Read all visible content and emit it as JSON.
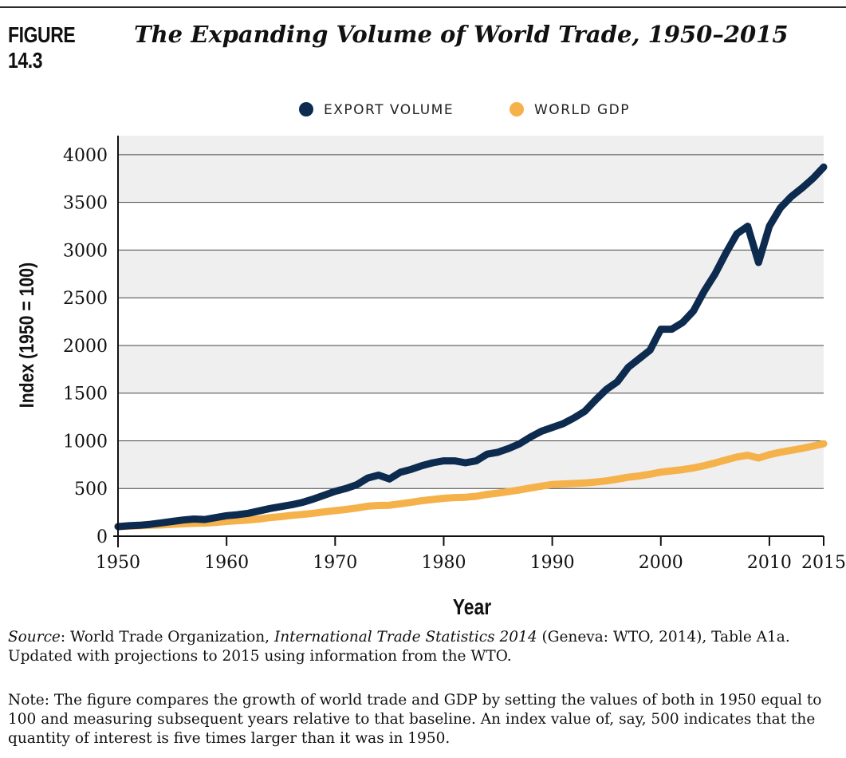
{
  "figure": {
    "label": "FIGURE 14.3",
    "title": "The Expanding Volume of World Trade, 1950–2015"
  },
  "source": {
    "label": "Source",
    "text_1": ": World Trade Organization, ",
    "publication": "International Trade Statistics 2014",
    "text_2": " (Geneva: WTO, 2014), Table A1a.",
    "text_3": "Updated with projections to 2015 using information from the WTO."
  },
  "note": "Note: The figure compares the growth of world trade and GDP by setting the values of both in 1950 equal to 100 and measuring subsequent years relative to that baseline. An index value of, say, 500 indicates that the quantity of interest is five times larger than it was in 1950.",
  "chart_data": {
    "type": "line",
    "xlabel": "Year",
    "ylabel": "Index (1950 = 100)",
    "xlim": [
      1950,
      2015
    ],
    "ylim": [
      0,
      4200
    ],
    "xticks": [
      1950,
      1960,
      1970,
      1980,
      1990,
      2000,
      2010,
      2015
    ],
    "yticks": [
      0,
      500,
      1000,
      1500,
      2000,
      2500,
      3000,
      3500,
      4000
    ],
    "grid": "alternating horizontal bands",
    "legend_position": "top-center",
    "series": [
      {
        "name": "EXPORT VOLUME",
        "color": "#0d2a4f",
        "x": [
          1950,
          1951,
          1952,
          1953,
          1954,
          1955,
          1956,
          1957,
          1958,
          1959,
          1960,
          1961,
          1962,
          1963,
          1964,
          1965,
          1966,
          1967,
          1968,
          1969,
          1970,
          1971,
          1972,
          1973,
          1974,
          1975,
          1976,
          1977,
          1978,
          1979,
          1980,
          1981,
          1982,
          1983,
          1984,
          1985,
          1986,
          1987,
          1988,
          1989,
          1990,
          1991,
          1992,
          1993,
          1994,
          1995,
          1996,
          1997,
          1998,
          1999,
          2000,
          2001,
          2002,
          2003,
          2004,
          2005,
          2006,
          2007,
          2008,
          2009,
          2010,
          2011,
          2012,
          2013,
          2014,
          2015
        ],
        "y": [
          100,
          110,
          115,
          125,
          140,
          155,
          170,
          180,
          175,
          195,
          215,
          225,
          240,
          265,
          290,
          310,
          330,
          355,
          390,
          430,
          470,
          500,
          540,
          610,
          640,
          600,
          670,
          700,
          740,
          770,
          790,
          790,
          770,
          790,
          860,
          880,
          920,
          970,
          1040,
          1100,
          1140,
          1180,
          1240,
          1310,
          1430,
          1540,
          1620,
          1770,
          1860,
          1950,
          2170,
          2170,
          2240,
          2360,
          2570,
          2750,
          2970,
          3170,
          3250,
          2870,
          3250,
          3440,
          3560,
          3650,
          3750,
          3870
        ]
      },
      {
        "name": "WORLD GDP",
        "color": "#f5b14a",
        "x": [
          1950,
          1951,
          1952,
          1953,
          1954,
          1955,
          1956,
          1957,
          1958,
          1959,
          1960,
          1961,
          1962,
          1963,
          1964,
          1965,
          1966,
          1967,
          1968,
          1969,
          1970,
          1971,
          1972,
          1973,
          1974,
          1975,
          1976,
          1977,
          1978,
          1979,
          1980,
          1981,
          1982,
          1983,
          1984,
          1985,
          1986,
          1987,
          1988,
          1989,
          1990,
          1991,
          1992,
          1993,
          1994,
          1995,
          1996,
          1997,
          1998,
          1999,
          2000,
          2001,
          2002,
          2003,
          2004,
          2005,
          2006,
          2007,
          2008,
          2009,
          2010,
          2011,
          2012,
          2013,
          2014,
          2015
        ],
        "y": [
          100,
          105,
          110,
          115,
          118,
          125,
          130,
          135,
          137,
          145,
          155,
          162,
          170,
          180,
          195,
          205,
          218,
          228,
          240,
          255,
          268,
          280,
          295,
          315,
          322,
          325,
          340,
          355,
          372,
          385,
          397,
          405,
          408,
          418,
          438,
          452,
          468,
          485,
          505,
          525,
          542,
          548,
          552,
          558,
          568,
          580,
          598,
          618,
          632,
          650,
          672,
          685,
          698,
          715,
          740,
          768,
          800,
          830,
          848,
          820,
          855,
          880,
          900,
          920,
          945,
          970
        ]
      }
    ]
  }
}
